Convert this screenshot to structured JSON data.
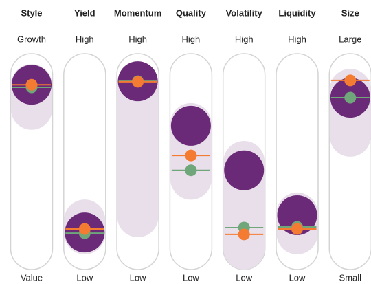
{
  "chart_data": {
    "type": "factor-profile",
    "categories": [
      "Style",
      "Yield",
      "Momentum",
      "Quality",
      "Volatility",
      "Liquidity",
      "Size"
    ],
    "top_labels": [
      "Growth",
      "High",
      "High",
      "High",
      "High",
      "High",
      "Large"
    ],
    "bottom_labels": [
      "Value",
      "Low",
      "Low",
      "Low",
      "Low",
      "Low",
      "Small"
    ],
    "ylim": [
      0,
      100
    ],
    "range_color": "#e9dfeb",
    "ranges": [
      [
        80,
        94
      ],
      [
        8.7,
        16.5
      ],
      [
        18.5,
        94.5
      ],
      [
        40,
        71.7
      ],
      [
        0,
        50
      ],
      [
        8.7,
        20.5
      ],
      [
        64.6,
        91.3
      ]
    ],
    "series": [
      {
        "color": "#6b2a78",
        "values": [
          94,
          9.4,
          96,
          70.5,
          45,
          19.3,
          86.6
        ]
      },
      {
        "color": "#f47b32",
        "values": [
          94,
          11.4,
          95.7,
          53.5,
          8.3,
          11.4,
          96.5
        ]
      },
      {
        "color": "#6fa67a",
        "values": [
          92.5,
          9,
          96,
          45,
          12.2,
          12.6,
          86.6
        ]
      }
    ]
  }
}
